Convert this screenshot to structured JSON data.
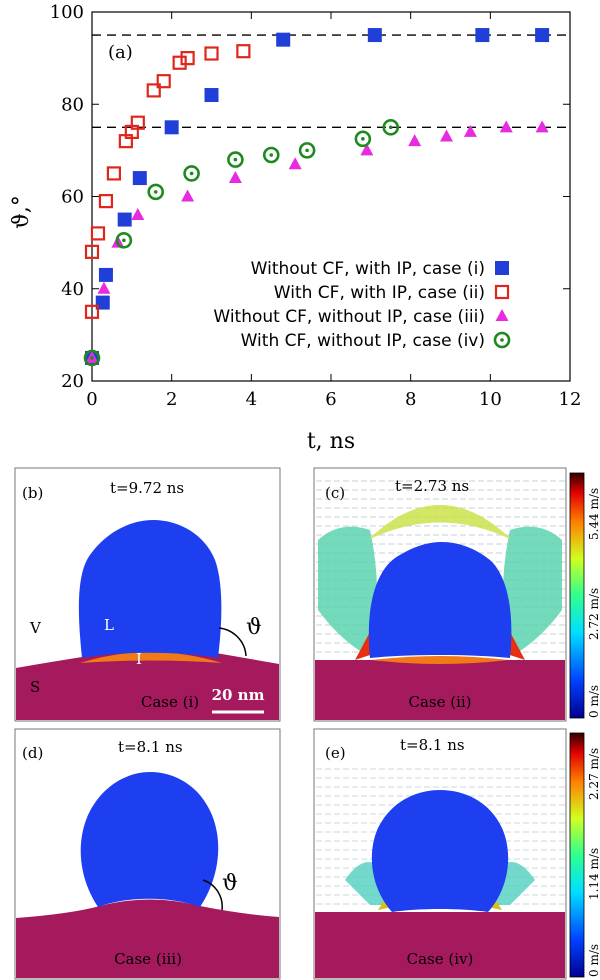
{
  "chart_data": {
    "type": "scatter",
    "panel_label": "(a)",
    "xlabel": "t, ns",
    "ylabel": "ϑ,°",
    "xlim": [
      0,
      12
    ],
    "ylim": [
      20,
      100
    ],
    "x_ticks": [
      "0",
      "2",
      "4",
      "6",
      "8",
      "10",
      "12"
    ],
    "y_ticks": [
      "20",
      "40",
      "60",
      "80",
      "100"
    ],
    "reference_lines": [
      95,
      75
    ],
    "legend_position": "center-right",
    "series": [
      {
        "name": "Without CF, with IP, case (i)",
        "marker": "filled-square",
        "color": "#1f3fd8",
        "points": [
          [
            0.0,
            25
          ],
          [
            0.27,
            37
          ],
          [
            0.35,
            43
          ],
          [
            0.82,
            55
          ],
          [
            1.2,
            64
          ],
          [
            2.0,
            75
          ],
          [
            3.0,
            82
          ],
          [
            4.8,
            94
          ],
          [
            7.1,
            95
          ],
          [
            9.8,
            95
          ],
          [
            11.3,
            95
          ]
        ]
      },
      {
        "name": "With CF, with IP, case (ii)",
        "marker": "open-square",
        "color": "#e0261b",
        "points": [
          [
            0.0,
            35
          ],
          [
            0.0,
            48
          ],
          [
            0.15,
            52
          ],
          [
            0.35,
            59
          ],
          [
            0.55,
            65
          ],
          [
            0.85,
            72
          ],
          [
            1.0,
            74
          ],
          [
            1.15,
            76
          ],
          [
            1.55,
            83
          ],
          [
            1.8,
            85
          ],
          [
            2.2,
            89
          ],
          [
            2.4,
            90
          ],
          [
            3.0,
            91
          ],
          [
            3.8,
            91.5
          ]
        ]
      },
      {
        "name": "Without CF, without IP, case (iii)",
        "marker": "filled-triangle",
        "color": "#e82ae0",
        "points": [
          [
            0.0,
            25
          ],
          [
            0.3,
            40
          ],
          [
            0.65,
            50
          ],
          [
            1.15,
            56
          ],
          [
            2.4,
            60
          ],
          [
            3.6,
            64
          ],
          [
            5.1,
            67
          ],
          [
            6.9,
            70
          ],
          [
            8.1,
            72
          ],
          [
            8.9,
            73
          ],
          [
            9.5,
            74
          ],
          [
            10.4,
            75
          ],
          [
            11.3,
            75
          ]
        ]
      },
      {
        "name": "With CF, without IP, case (iv)",
        "marker": "circle-dot",
        "color": "#1e8a1e",
        "points": [
          [
            0.0,
            25
          ],
          [
            0.8,
            50.5
          ],
          [
            1.6,
            61
          ],
          [
            2.5,
            65
          ],
          [
            3.6,
            68
          ],
          [
            4.5,
            69
          ],
          [
            5.4,
            70
          ],
          [
            6.8,
            72.5
          ],
          [
            7.5,
            75
          ]
        ]
      }
    ]
  },
  "panels": {
    "b": {
      "label": "(b)",
      "time": "t=9.72 ns",
      "case": "Case (i)",
      "phase_labels": [
        "V",
        "L",
        "I",
        "S"
      ],
      "angle_symbol": "ϑ",
      "scale_bar": "20 nm"
    },
    "c": {
      "label": "(c)",
      "time": "t=2.73 ns",
      "case": "Case (ii)",
      "colorbar_ticks": [
        "5.44 m/s",
        "2.72 m/s",
        "0 m/s"
      ]
    },
    "d": {
      "label": "(d)",
      "time": "t=8.1 ns",
      "case": "Case (iii)",
      "angle_symbol": "ϑ"
    },
    "e": {
      "label": "(e)",
      "time": "t=8.1 ns",
      "case": "Case (iv)",
      "colorbar_ticks": [
        "2.27 m/s",
        "1.14 m/s",
        "0 m/s"
      ]
    }
  },
  "colors": {
    "liquid": "#1d3ff0",
    "solid": "#a41a5c",
    "interface": "#f07a18",
    "reference_line": "#000000"
  }
}
